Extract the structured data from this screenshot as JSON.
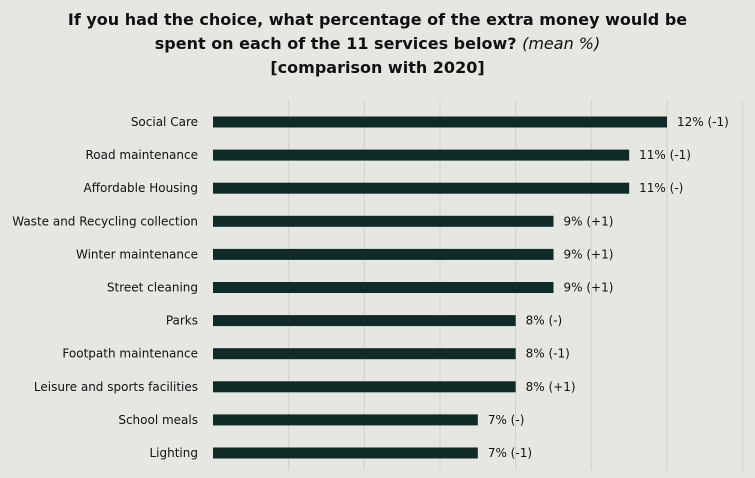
{
  "chart_data": {
    "type": "bar",
    "orientation": "horizontal",
    "title_lines": [
      "If you had the choice, what percentage of the extra money would be",
      "spent on each of the 11 services below?",
      "[comparison with 2020]"
    ],
    "title_suffix": "(mean %)",
    "categories": [
      "Social Care",
      "Road maintenance",
      "Affordable Housing",
      "Waste and Recycling collection",
      "Winter maintenance",
      "Street cleaning",
      "Parks",
      "Footpath maintenance",
      "Leisure and sports facilities",
      "School meals",
      "Lighting"
    ],
    "values": [
      12,
      11,
      11,
      9,
      9,
      9,
      8,
      8,
      8,
      7,
      7
    ],
    "data_labels": [
      "12% (-1)",
      "11% (-1)",
      "11% (-)",
      "9% (+1)",
      "9% (+1)",
      "9% (+1)",
      "8% (-)",
      "8% (-1)",
      "8% (+1)",
      "7% (-)",
      "7% (-1)"
    ],
    "xlim": [
      0,
      12
    ],
    "grid": true,
    "legend": "none",
    "colors": {
      "bar": "#0e2b27",
      "background": "#e6e7e1",
      "gridline": "#cfd1ca"
    }
  }
}
